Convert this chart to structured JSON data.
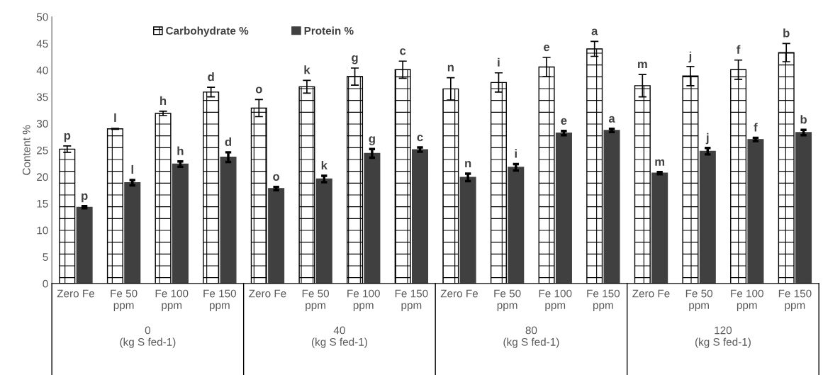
{
  "chart_data": {
    "type": "bar",
    "ylabel": "Content %",
    "categories": [
      "Zero Fe",
      "Fe 50 ppm",
      "Fe 100 ppm",
      "Fe 150 ppm",
      "Zero Fe",
      "Fe 50 ppm",
      "Fe 100 ppm",
      "Fe 150 ppm",
      "Zero Fe",
      "Fe 50 ppm",
      "Fe 100 ppm",
      "Fe 150 ppm",
      "Zero Fe",
      "Fe 50 ppm",
      "Fe 100 ppm",
      "Fe 150 ppm"
    ],
    "series": [
      {
        "name": "Carbohydrate %",
        "color": "#000000",
        "values": [
          25.2,
          29.0,
          31.9,
          35.9,
          32.9,
          36.9,
          38.8,
          40.1,
          36.5,
          37.7,
          40.6,
          44.0,
          37.1,
          38.9,
          40.1,
          43.3
        ],
        "errors": [
          0.6,
          0.1,
          0.4,
          0.9,
          1.6,
          1.2,
          1.6,
          1.6,
          2.1,
          1.8,
          1.8,
          1.4,
          2.1,
          1.8,
          1.8,
          1.7
        ],
        "value_labels": [
          "p",
          "l",
          "h",
          "d",
          "o",
          "k",
          "g",
          "c",
          "n",
          "i",
          "e",
          "a",
          "m",
          "j",
          "f",
          "b"
        ]
      },
      {
        "name": "Protein %",
        "color": "#404040",
        "values": [
          14.3,
          18.9,
          22.4,
          23.7,
          17.8,
          19.6,
          24.4,
          25.1,
          19.9,
          21.8,
          28.2,
          28.7,
          20.7,
          24.8,
          27.0,
          28.3
        ],
        "errors": [
          0.2,
          0.5,
          0.5,
          0.9,
          0.3,
          0.6,
          0.8,
          0.4,
          0.7,
          0.6,
          0.4,
          0.3,
          0.2,
          0.6,
          0.3,
          0.5
        ],
        "value_labels": [
          "p",
          "l",
          "h",
          "d",
          "o",
          "k",
          "g",
          "c",
          "n",
          "i",
          "e",
          "a",
          "m",
          "j",
          "f",
          "b"
        ]
      }
    ],
    "annotations": [
      "0 (kg S fed-1)",
      "40 (kg S fed-1)",
      "80 (kg S fed-1)",
      "120 (kg S fed-1)"
    ],
    "ylim": [
      0,
      50
    ],
    "yticks": [
      0,
      5,
      10,
      15,
      20,
      25,
      30,
      35,
      40,
      45,
      50
    ],
    "legend": "top",
    "grid": false
  }
}
